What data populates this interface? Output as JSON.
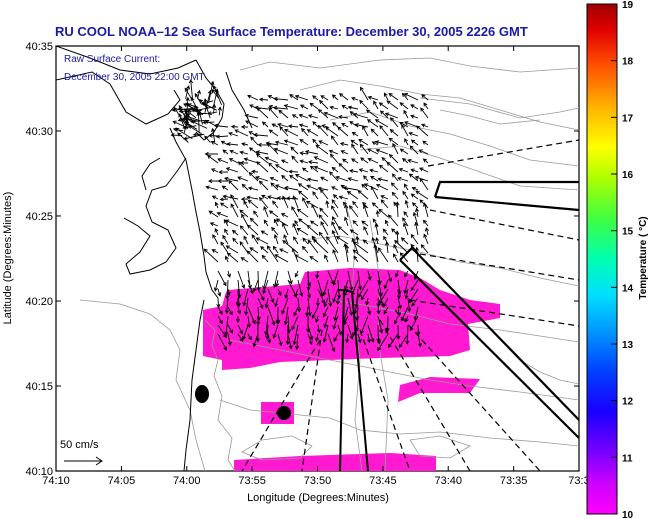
{
  "chart_data": {
    "type": "map",
    "title": "RU COOL   NOAA–12  Sea Surface Temperature:  December 30, 2005 2226 GMT",
    "subtitle_lines": [
      "Raw Surface Current:",
      "December 30, 2005 22:00 GMT"
    ],
    "xlabel": "Longitude (Degrees:Minutes)",
    "ylabel": "Latitude (Degrees:Minutes)",
    "x_ticks": [
      "74:10",
      "74:05",
      "74:00",
      "73:55",
      "73:50",
      "73:45",
      "73:40",
      "73:35",
      "73:3"
    ],
    "x_tick_values": [
      -74.1667,
      -74.0833,
      -74.0,
      -73.9167,
      -73.8333,
      -73.75,
      -73.6667,
      -73.5833,
      -73.5
    ],
    "y_ticks": [
      "40:10",
      "40:15",
      "40:20",
      "40:25",
      "40:30",
      "40:35"
    ],
    "y_tick_values": [
      40.1667,
      40.25,
      40.3333,
      40.4167,
      40.5,
      40.5833
    ],
    "xlim": [
      -74.1667,
      -73.5
    ],
    "ylim": [
      40.1667,
      40.5833
    ],
    "scale_label": "50 cm/s",
    "colorbar": {
      "label": "Temperature ( °C)",
      "ticks": [
        "10",
        "11",
        "12",
        "13",
        "14",
        "15",
        "16",
        "17",
        "18",
        "19"
      ],
      "range": [
        10,
        19
      ]
    },
    "sst_patch_value_c": 10
  },
  "colors": {
    "title": "#1a1aa8",
    "sst_patch": "#ff19d0",
    "contour": "#9a9a9a",
    "coast": "#000000"
  }
}
